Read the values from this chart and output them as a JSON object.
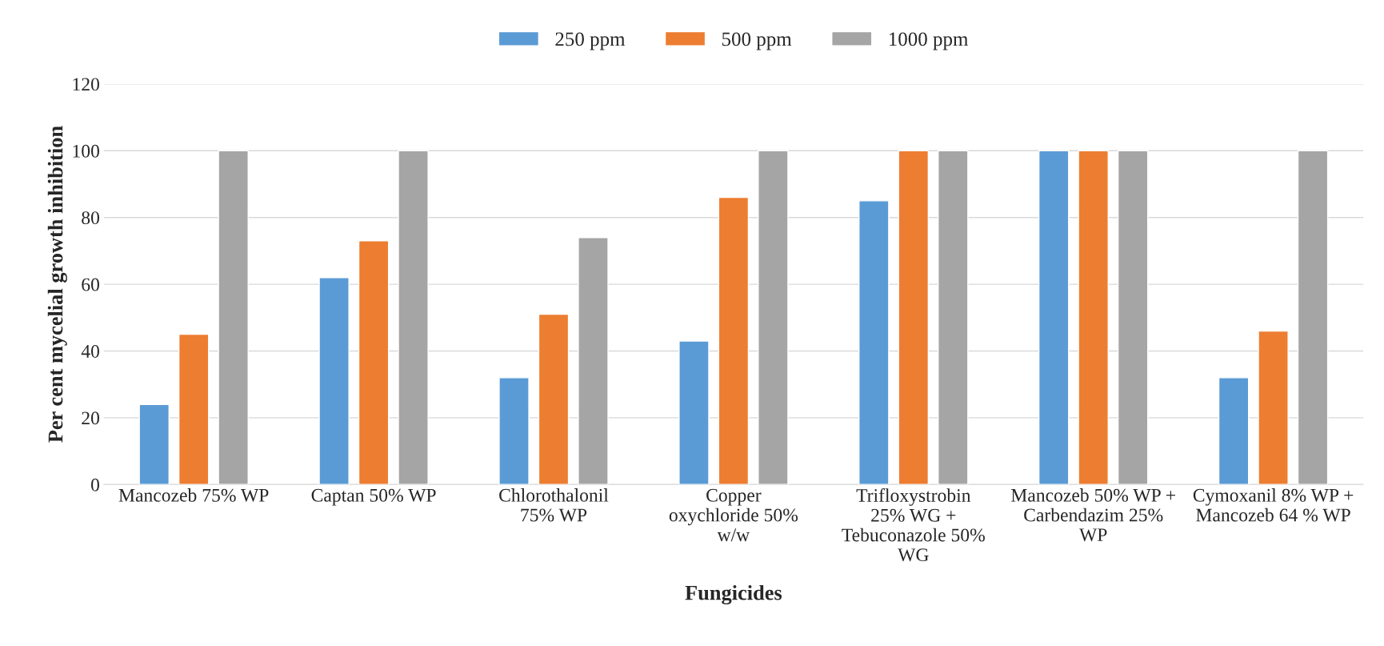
{
  "chart_data": {
    "type": "bar",
    "xlabel": "Fungicides",
    "ylabel": "Per cent mycelial growth inhibition",
    "categories": [
      "Mancozeb 75% WP",
      "Captan 50% WP",
      "Chlorothalonil 75% WP",
      "Copper oxychloride 50% w/w",
      "Trifloxystrobin 25% WG + Tebuconazole 50% WG",
      "Mancozeb 50% WP + Carbendazim 25% WP",
      "Cymoxanil 8% WP + Mancozeb 64 % WP"
    ],
    "series": [
      {
        "name": "250 ppm",
        "color": "#5b9bd5",
        "values": [
          24,
          62,
          32,
          43,
          85,
          100,
          32
        ]
      },
      {
        "name": "500 ppm",
        "color": "#ed7d31",
        "values": [
          45,
          73,
          51,
          86,
          100,
          100,
          46
        ]
      },
      {
        "name": "1000 ppm",
        "color": "#a5a5a5",
        "values": [
          100,
          100,
          74,
          100,
          100,
          100,
          100
        ]
      }
    ],
    "ylim": [
      0,
      120
    ],
    "yticks": [
      0,
      20,
      40,
      60,
      80,
      100,
      120
    ],
    "grid": "y",
    "legend": "top"
  }
}
